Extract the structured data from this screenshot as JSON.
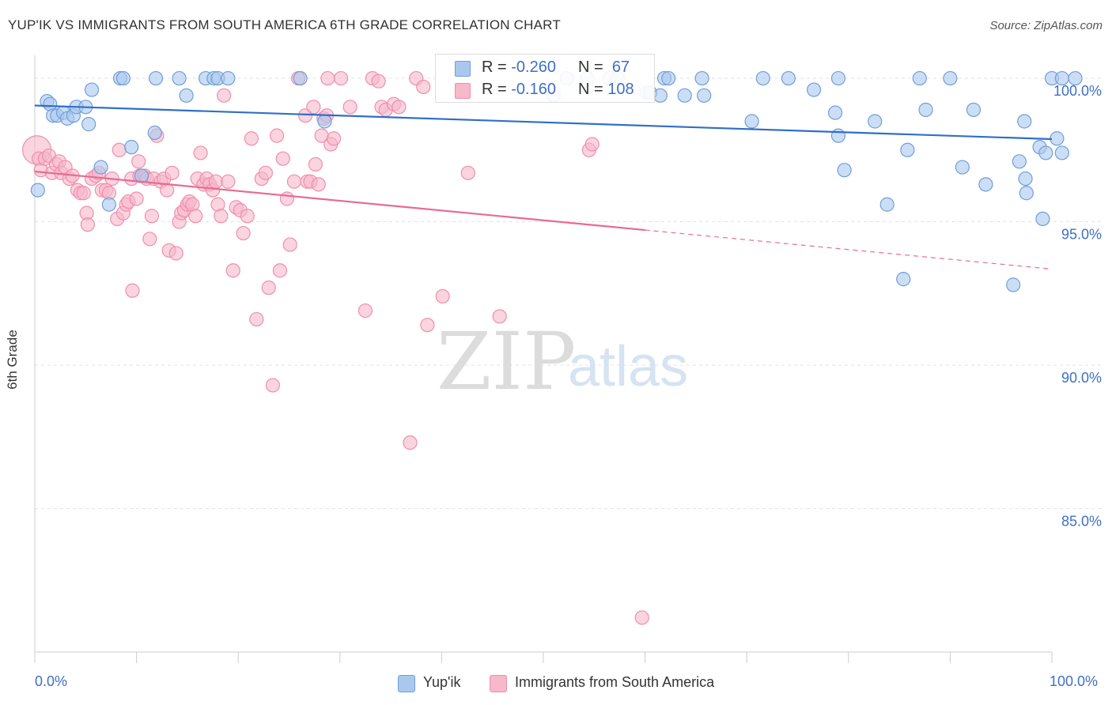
{
  "header": {
    "title": "YUP'IK VS IMMIGRANTS FROM SOUTH AMERICA 6TH GRADE CORRELATION CHART",
    "source": "Source: ZipAtlas.com"
  },
  "watermark": {
    "zip": "ZIP",
    "atlas": "atlas"
  },
  "colors": {
    "blue_fill": "#aac8ee",
    "blue_stroke": "#6f9fd8",
    "blue_line": "#2f6fc9",
    "pink_fill": "#f7b8ca",
    "pink_stroke": "#ee8fae",
    "pink_line": "#e76b95",
    "grid": "#e3e3e3",
    "tick_text": "#3f6fc4"
  },
  "legend_top": {
    "rows": [
      {
        "r_label": "R =",
        "r_value": "-0.260",
        "n_label": "N =",
        "n_value": "67"
      },
      {
        "r_label": "R =",
        "r_value": "-0.160",
        "n_label": "N =",
        "n_value": "108"
      }
    ]
  },
  "legend_bottom": {
    "items": [
      "Yup'ik",
      "Immigrants from South America"
    ]
  },
  "chart_data": {
    "type": "scatter",
    "title": "YUP'IK VS IMMIGRANTS FROM SOUTH AMERICA 6TH GRADE CORRELATION CHART",
    "xlabel": "",
    "ylabel": "6th Grade",
    "xlim": [
      0,
      100
    ],
    "ylim": [
      80.0,
      100.8
    ],
    "x_tick_labels": [
      "0.0%",
      "100.0%"
    ],
    "y_ticks": [
      100,
      95,
      90,
      85
    ],
    "y_tick_labels": [
      "100.0%",
      "95.0%",
      "90.0%",
      "85.0%"
    ],
    "grid": true,
    "legend": "bottom",
    "series": [
      {
        "name": "Yup'ik",
        "R": -0.26,
        "N": 67,
        "trend": {
          "x0": 0,
          "y0": 99.05,
          "x1": 100,
          "y1": 97.88,
          "dashed_from": null
        },
        "points": [
          [
            0.3,
            96.1
          ],
          [
            1.2,
            99.2
          ],
          [
            1.5,
            99.1
          ],
          [
            1.8,
            98.7
          ],
          [
            2.2,
            98.7
          ],
          [
            2.8,
            98.8
          ],
          [
            3.2,
            98.6
          ],
          [
            3.8,
            98.7
          ],
          [
            4.1,
            99.0
          ],
          [
            5.0,
            99.0
          ],
          [
            5.3,
            98.4
          ],
          [
            5.6,
            99.6
          ],
          [
            6.5,
            96.9
          ],
          [
            7.3,
            95.6
          ],
          [
            8.4,
            100.0
          ],
          [
            8.7,
            100.0
          ],
          [
            9.5,
            97.6
          ],
          [
            10.5,
            96.6
          ],
          [
            11.8,
            98.1
          ],
          [
            11.9,
            100.0
          ],
          [
            14.2,
            100.0
          ],
          [
            14.9,
            99.4
          ],
          [
            16.8,
            100.0
          ],
          [
            17.6,
            100.0
          ],
          [
            18.0,
            100.0
          ],
          [
            19.0,
            100.0
          ],
          [
            26.1,
            100.0
          ],
          [
            28.5,
            98.5
          ],
          [
            51.0,
            99.4
          ],
          [
            52.3,
            100.0
          ],
          [
            54.3,
            100.0
          ],
          [
            56.5,
            100.0
          ],
          [
            57.3,
            100.0
          ],
          [
            60.2,
            99.5
          ],
          [
            60.5,
            99.5
          ],
          [
            61.5,
            99.4
          ],
          [
            61.9,
            100.0
          ],
          [
            62.3,
            100.0
          ],
          [
            63.9,
            99.4
          ],
          [
            65.8,
            99.4
          ],
          [
            65.6,
            100.0
          ],
          [
            70.5,
            98.5
          ],
          [
            71.6,
            100.0
          ],
          [
            74.1,
            100.0
          ],
          [
            76.6,
            99.6
          ],
          [
            78.7,
            98.8
          ],
          [
            79.0,
            98.0
          ],
          [
            79.6,
            96.8
          ],
          [
            82.6,
            98.5
          ],
          [
            83.8,
            95.6
          ],
          [
            79.0,
            100.0
          ],
          [
            85.4,
            93.0
          ],
          [
            85.8,
            97.5
          ],
          [
            87.0,
            100.0
          ],
          [
            87.6,
            98.9
          ],
          [
            90.0,
            100.0
          ],
          [
            91.2,
            96.9
          ],
          [
            92.3,
            98.9
          ],
          [
            93.5,
            96.3
          ],
          [
            96.2,
            92.8
          ],
          [
            96.8,
            97.1
          ],
          [
            97.3,
            98.5
          ],
          [
            97.4,
            96.5
          ],
          [
            97.5,
            96.0
          ],
          [
            98.8,
            97.6
          ],
          [
            99.1,
            95.1
          ],
          [
            99.4,
            97.4
          ],
          [
            100.0,
            100.0
          ],
          [
            100.5,
            97.9
          ],
          [
            101.0,
            97.4
          ],
          [
            101.0,
            100.0
          ],
          [
            102.3,
            100.0
          ]
        ]
      },
      {
        "name": "Immigrants from South America",
        "R": -0.16,
        "N": 108,
        "trend": {
          "x0": 0,
          "y0": 96.75,
          "x1": 100,
          "y1": 93.35,
          "dashed_from": 60
        },
        "points": [
          [
            0.2,
            97.5
          ],
          [
            0.4,
            97.2
          ],
          [
            0.6,
            96.8
          ],
          [
            1.0,
            97.2
          ],
          [
            1.4,
            97.3
          ],
          [
            1.7,
            96.7
          ],
          [
            2.1,
            97.0
          ],
          [
            2.4,
            97.1
          ],
          [
            2.6,
            96.7
          ],
          [
            3.0,
            96.9
          ],
          [
            3.4,
            96.5
          ],
          [
            3.7,
            96.6
          ],
          [
            4.2,
            96.1
          ],
          [
            4.5,
            96.0
          ],
          [
            4.8,
            96.0
          ],
          [
            5.1,
            95.3
          ],
          [
            5.2,
            94.9
          ],
          [
            5.6,
            96.5
          ],
          [
            6.0,
            96.6
          ],
          [
            6.3,
            96.7
          ],
          [
            6.6,
            96.1
          ],
          [
            7.0,
            96.1
          ],
          [
            7.3,
            96.0
          ],
          [
            7.6,
            96.5
          ],
          [
            8.1,
            95.1
          ],
          [
            8.3,
            97.5
          ],
          [
            8.7,
            95.3
          ],
          [
            9.0,
            95.6
          ],
          [
            9.2,
            95.7
          ],
          [
            9.5,
            96.5
          ],
          [
            9.6,
            92.6
          ],
          [
            10.0,
            95.8
          ],
          [
            10.2,
            97.1
          ],
          [
            10.3,
            96.6
          ],
          [
            10.5,
            96.6
          ],
          [
            10.8,
            96.6
          ],
          [
            11.0,
            96.5
          ],
          [
            11.3,
            94.4
          ],
          [
            11.5,
            95.2
          ],
          [
            11.7,
            96.5
          ],
          [
            12.0,
            98.0
          ],
          [
            12.4,
            96.4
          ],
          [
            12.7,
            96.5
          ],
          [
            13.0,
            96.1
          ],
          [
            13.2,
            94.0
          ],
          [
            13.5,
            96.7
          ],
          [
            13.9,
            93.9
          ],
          [
            14.2,
            95.0
          ],
          [
            14.4,
            95.3
          ],
          [
            14.7,
            95.4
          ],
          [
            15.0,
            95.6
          ],
          [
            15.2,
            95.7
          ],
          [
            15.5,
            95.6
          ],
          [
            15.8,
            95.2
          ],
          [
            16.0,
            96.5
          ],
          [
            16.3,
            97.4
          ],
          [
            16.6,
            96.3
          ],
          [
            16.9,
            96.5
          ],
          [
            17.2,
            96.3
          ],
          [
            17.5,
            96.1
          ],
          [
            17.8,
            96.4
          ],
          [
            18.0,
            95.6
          ],
          [
            18.3,
            95.2
          ],
          [
            18.6,
            99.4
          ],
          [
            19.0,
            96.4
          ],
          [
            19.5,
            93.3
          ],
          [
            19.8,
            95.5
          ],
          [
            20.2,
            95.4
          ],
          [
            20.5,
            94.6
          ],
          [
            20.9,
            95.2
          ],
          [
            21.3,
            97.9
          ],
          [
            21.8,
            91.6
          ],
          [
            22.3,
            96.5
          ],
          [
            22.7,
            96.7
          ],
          [
            23.0,
            92.7
          ],
          [
            23.4,
            89.3
          ],
          [
            23.8,
            98.0
          ],
          [
            24.1,
            93.3
          ],
          [
            24.4,
            97.2
          ],
          [
            24.8,
            95.8
          ],
          [
            25.1,
            94.2
          ],
          [
            25.5,
            96.4
          ],
          [
            25.9,
            100.0
          ],
          [
            26.6,
            98.7
          ],
          [
            26.8,
            96.4
          ],
          [
            27.1,
            96.4
          ],
          [
            27.4,
            99.0
          ],
          [
            27.6,
            97.0
          ],
          [
            27.9,
            96.3
          ],
          [
            28.2,
            98.0
          ],
          [
            28.4,
            98.6
          ],
          [
            28.7,
            98.7
          ],
          [
            29.1,
            97.7
          ],
          [
            29.4,
            97.9
          ],
          [
            28.8,
            100.0
          ],
          [
            30.1,
            100.0
          ],
          [
            31.0,
            99.0
          ],
          [
            32.5,
            91.9
          ],
          [
            33.2,
            100.0
          ],
          [
            33.8,
            99.9
          ],
          [
            34.1,
            99.0
          ],
          [
            34.5,
            98.9
          ],
          [
            35.3,
            99.1
          ],
          [
            35.8,
            99.0
          ],
          [
            36.9,
            87.3
          ],
          [
            37.5,
            100.0
          ],
          [
            38.2,
            99.7
          ],
          [
            38.6,
            91.4
          ],
          [
            40.1,
            92.4
          ],
          [
            42.6,
            96.7
          ],
          [
            45.7,
            91.7
          ],
          [
            54.5,
            97.5
          ],
          [
            54.8,
            97.7
          ],
          [
            59.7,
            81.2
          ]
        ]
      }
    ]
  }
}
